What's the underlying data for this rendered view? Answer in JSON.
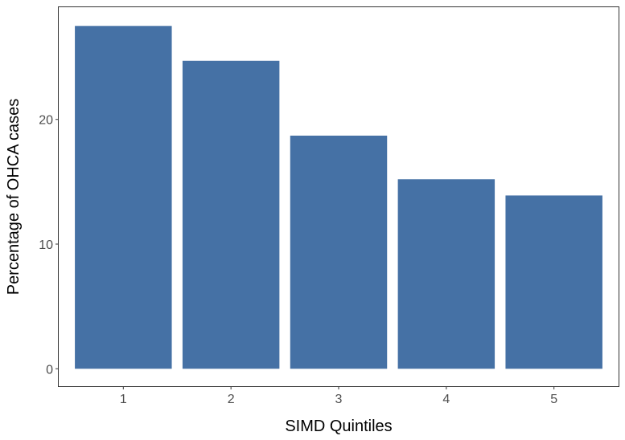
{
  "chart_data": {
    "type": "bar",
    "title": "",
    "xlabel": "SIMD Quintiles",
    "ylabel": "Percentage of OHCA cases",
    "categories": [
      "1",
      "2",
      "3",
      "4",
      "5"
    ],
    "values": [
      27.5,
      24.7,
      18.7,
      15.2,
      13.9
    ],
    "ylim": [
      -1.4,
      29.0
    ],
    "yticks": [
      0,
      10,
      20
    ],
    "ytick_labels": [
      "0",
      "10",
      "20"
    ],
    "grid": false,
    "legend": "none",
    "bar_color": "#4571a5",
    "frame_color": "#333333"
  }
}
